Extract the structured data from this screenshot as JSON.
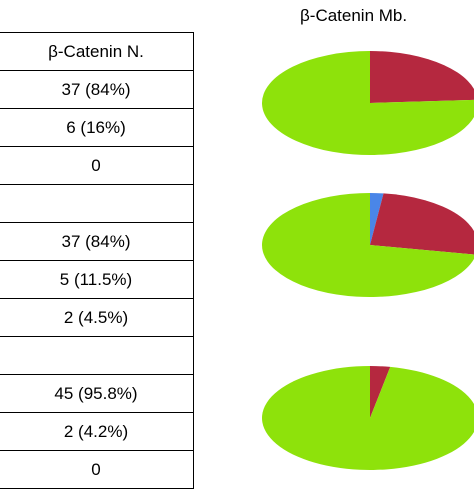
{
  "table": {
    "header": "β-Catenin N.",
    "rows": [
      "37 (84%)",
      "6 (16%)",
      "0",
      "",
      "37 (84%)",
      "5 (11.5%)",
      "2 (4.5%)",
      "",
      "45 (95.8%)",
      "2 (4.2%)",
      "0"
    ]
  },
  "mb_title": "β-Catenin Mb.",
  "colors": {
    "green": "#8ee20b",
    "red": "#b5283f",
    "blue": "#4a86e8"
  },
  "chart_data": [
    {
      "type": "pie",
      "title": "β-Catenin Mb.",
      "slices": [
        {
          "value": 76,
          "color": "green"
        },
        {
          "value": 24,
          "color": "red"
        }
      ]
    },
    {
      "type": "pie",
      "slices": [
        {
          "value": 72,
          "color": "green"
        },
        {
          "value": 26,
          "color": "red"
        },
        {
          "value": 2,
          "color": "blue"
        }
      ]
    },
    {
      "type": "pie",
      "slices": [
        {
          "value": 97,
          "color": "green"
        },
        {
          "value": 3,
          "color": "red"
        }
      ]
    }
  ]
}
